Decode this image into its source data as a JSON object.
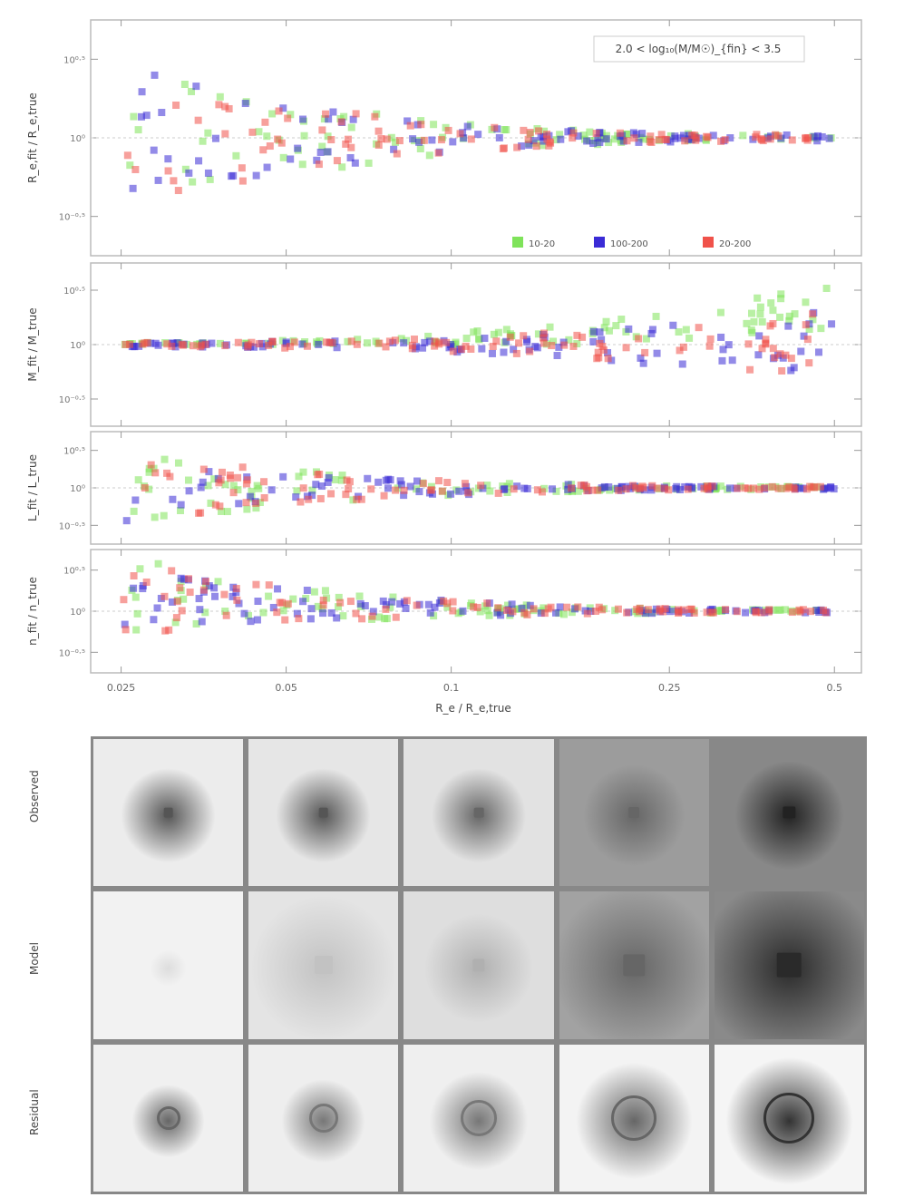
{
  "figure_top": {
    "annotation": "2.0 < log₁₀(M/M☉)_{fin} < 3.5",
    "xlabel": "R_e / R_e,true",
    "xticks": [
      "0.025",
      "0.05",
      "0.1",
      "0.25",
      "0.5"
    ],
    "panels": [
      {
        "ylabel": "R_e,fit / R_e,true",
        "yticks": [
          "10⁰·⁵",
          "10⁰",
          "10⁻⁰·⁵"
        ]
      },
      {
        "ylabel": "M_fit / M_true",
        "yticks": [
          "10⁰·⁵",
          "10⁰",
          "10⁻⁰·⁵"
        ]
      },
      {
        "ylabel": "L_fit / L_true",
        "yticks": [
          "10⁰·⁵",
          "10⁰",
          "10⁻⁰·⁵"
        ]
      },
      {
        "ylabel": "n_fit / n_true",
        "yticks": [
          "10⁰·⁵",
          "10⁰",
          "10⁻⁰·⁵"
        ]
      }
    ],
    "legend": [
      {
        "label": "10-20",
        "color": "#7fe35a"
      },
      {
        "label": "100-200",
        "color": "#3a2bd6"
      },
      {
        "label": "20-200",
        "color": "#f0524a"
      }
    ]
  },
  "chart_data": {
    "type": "scatter",
    "xlabel": "R_e / R_e,true",
    "x_scale": "log",
    "xlim": [
      0.022,
      0.56
    ],
    "ylim_log10": [
      -0.75,
      0.75
    ],
    "series": [
      {
        "name": "10-20",
        "color": "#7fe35a"
      },
      {
        "name": "100-200",
        "color": "#3a2bd6"
      },
      {
        "name": "20-200",
        "color": "#f0524a"
      }
    ]
  },
  "figure_bottom": {
    "rows": [
      "Observed",
      "Model",
      "Residual"
    ],
    "captions": [
      "",
      "",
      "",
      "",
      ""
    ]
  }
}
